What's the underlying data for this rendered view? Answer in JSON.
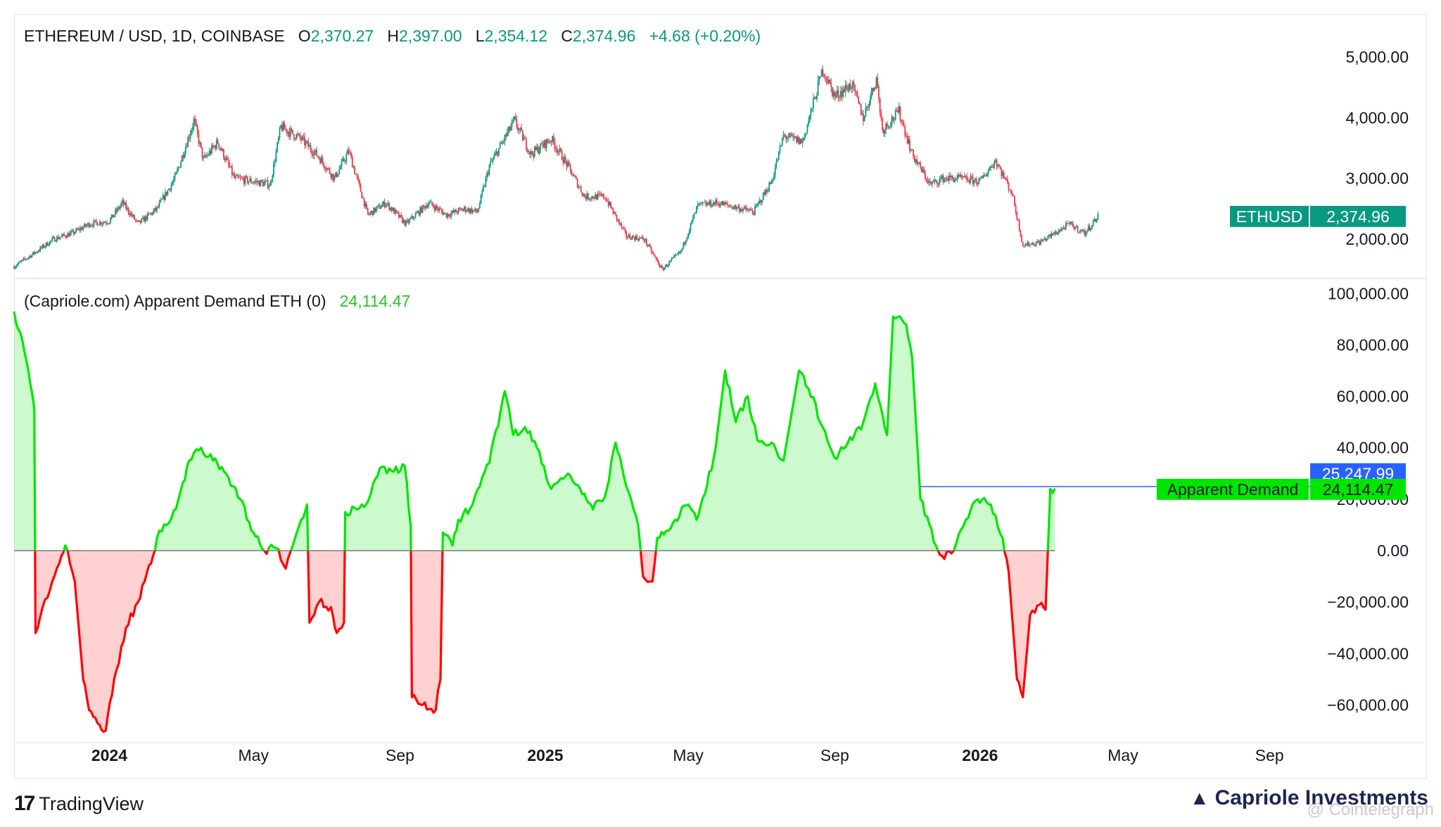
{
  "price_legend": {
    "symbol": "ETHEREUM / USD, 1D, COINBASE",
    "o_label": "O",
    "o_value": "2,370.27",
    "h_label": "H",
    "h_value": "2,397.00",
    "l_label": "L",
    "l_value": "2,354.12",
    "c_label": "C",
    "c_value": "2,374.96",
    "change": "+4.68 (+0.20%)"
  },
  "indicator_legend": {
    "name": "(Capriole.com) Apparent Demand ETH (0)",
    "value": "24,114.47"
  },
  "price_tag": {
    "symbol": "ETHUSD",
    "value": "2,374.96"
  },
  "demand_tags": {
    "upper": "25,247.99",
    "name": "Apparent Demand",
    "value": "24,114.47"
  },
  "branding": {
    "tradingview": "TradingView",
    "capriole": "Capriole Investments",
    "watermark": "@ Cointelegraph"
  },
  "colors": {
    "up": "#089981",
    "down": "#f23645",
    "demand_pos": "#00e600",
    "demand_neg": "#ff0000",
    "blue_tag": "#2962ff"
  },
  "chart_data": [
    {
      "type": "candlestick",
      "title": "ETHEREUM / USD, 1D, COINBASE",
      "ylim": [
        1400,
        5300
      ],
      "yticks": [
        2000,
        3000,
        4000,
        5000
      ],
      "ytick_labels": [
        "2,000.00",
        "3,000.00",
        "4,000.00",
        "5,000.00"
      ],
      "x_start": "2023-10-13",
      "x_end": "2026-04-10",
      "x_axis_end": "2026-10-01",
      "xticks": [
        {
          "date": "2024-01-01",
          "label": "2024",
          "bold": true
        },
        {
          "date": "2024-05-01",
          "label": "May",
          "bold": false
        },
        {
          "date": "2024-09-01",
          "label": "Sep",
          "bold": false
        },
        {
          "date": "2025-01-01",
          "label": "2025",
          "bold": true
        },
        {
          "date": "2025-05-01",
          "label": "May",
          "bold": false
        },
        {
          "date": "2025-09-01",
          "label": "Sep",
          "bold": false
        },
        {
          "date": "2026-01-01",
          "label": "2026",
          "bold": true
        },
        {
          "date": "2026-05-01",
          "label": "May",
          "bold": false
        },
        {
          "date": "2026-09-01",
          "label": "Sep",
          "bold": false
        }
      ],
      "close_path": [
        [
          "2023-10-13",
          1550
        ],
        [
          "2023-11-01",
          1800
        ],
        [
          "2023-11-15",
          2000
        ],
        [
          "2023-12-01",
          2100
        ],
        [
          "2023-12-15",
          2250
        ],
        [
          "2024-01-01",
          2300
        ],
        [
          "2024-01-12",
          2600
        ],
        [
          "2024-01-25",
          2250
        ],
        [
          "2024-02-10",
          2500
        ],
        [
          "2024-02-25",
          3000
        ],
        [
          "2024-03-12",
          3950
        ],
        [
          "2024-03-20",
          3300
        ],
        [
          "2024-04-01",
          3600
        ],
        [
          "2024-04-15",
          3000
        ],
        [
          "2024-05-01",
          2950
        ],
        [
          "2024-05-15",
          2900
        ],
        [
          "2024-05-24",
          3850
        ],
        [
          "2024-06-10",
          3650
        ],
        [
          "2024-06-25",
          3350
        ],
        [
          "2024-07-08",
          3000
        ],
        [
          "2024-07-20",
          3450
        ],
        [
          "2024-08-05",
          2400
        ],
        [
          "2024-08-20",
          2600
        ],
        [
          "2024-09-06",
          2250
        ],
        [
          "2024-09-25",
          2600
        ],
        [
          "2024-10-10",
          2400
        ],
        [
          "2024-10-25",
          2500
        ],
        [
          "2024-11-05",
          2450
        ],
        [
          "2024-11-15",
          3200
        ],
        [
          "2024-12-06",
          3950
        ],
        [
          "2024-12-20",
          3400
        ],
        [
          "2025-01-06",
          3650
        ],
        [
          "2025-01-20",
          3200
        ],
        [
          "2025-02-03",
          2700
        ],
        [
          "2025-02-20",
          2700
        ],
        [
          "2025-03-10",
          2050
        ],
        [
          "2025-03-25",
          2000
        ],
        [
          "2025-04-09",
          1500
        ],
        [
          "2025-04-25",
          1800
        ],
        [
          "2025-05-09",
          2550
        ],
        [
          "2025-05-25",
          2600
        ],
        [
          "2025-06-15",
          2500
        ],
        [
          "2025-06-25",
          2450
        ],
        [
          "2025-07-10",
          2950
        ],
        [
          "2025-07-20",
          3700
        ],
        [
          "2025-08-05",
          3600
        ],
        [
          "2025-08-22",
          4800
        ],
        [
          "2025-09-01",
          4350
        ],
        [
          "2025-09-15",
          4550
        ],
        [
          "2025-09-25",
          4000
        ],
        [
          "2025-10-06",
          4650
        ],
        [
          "2025-10-11",
          3800
        ],
        [
          "2025-10-25",
          4100
        ],
        [
          "2025-11-05",
          3400
        ],
        [
          "2025-11-20",
          2900
        ],
        [
          "2025-12-01",
          3000
        ],
        [
          "2025-12-15",
          3000
        ],
        [
          "2026-01-01",
          2950
        ],
        [
          "2026-01-14",
          3300
        ],
        [
          "2026-01-28",
          2750
        ],
        [
          "2026-02-06",
          1900
        ],
        [
          "2026-02-20",
          1950
        ],
        [
          "2026-03-05",
          2100
        ],
        [
          "2026-03-17",
          2250
        ],
        [
          "2026-03-30",
          2100
        ],
        [
          "2026-04-10",
          2374.96
        ]
      ]
    },
    {
      "type": "area",
      "title": "(Capriole.com) Apparent Demand ETH (0)",
      "ylim": [
        -73000,
        102000
      ],
      "yticks": [
        -60000,
        -40000,
        -20000,
        0,
        20000,
        40000,
        60000,
        80000,
        100000
      ],
      "ytick_labels": [
        "−60,000.00",
        "−40,000.00",
        "−20,000.00",
        "0.00",
        "20,000.00",
        "40,000.00",
        "60,000.00",
        "80,000.00",
        "100,000.00"
      ],
      "baseline": 0,
      "reference_level": 25247.99,
      "series": [
        [
          "2023-10-13",
          93000
        ],
        [
          "2023-10-18",
          85000
        ],
        [
          "2023-10-25",
          70000
        ],
        [
          "2023-10-30",
          55000
        ],
        [
          "2023-10-31",
          -32000
        ],
        [
          "2023-11-06",
          -22000
        ],
        [
          "2023-11-20",
          -5000
        ],
        [
          "2023-11-25",
          2000
        ],
        [
          "2023-12-03",
          -12000
        ],
        [
          "2023-12-10",
          -50000
        ],
        [
          "2023-12-15",
          -62000
        ],
        [
          "2023-12-22",
          -67000
        ],
        [
          "2023-12-29",
          -70000
        ],
        [
          "2024-01-05",
          -50000
        ],
        [
          "2024-01-15",
          -30000
        ],
        [
          "2024-01-25",
          -20000
        ],
        [
          "2024-02-05",
          -5000
        ],
        [
          "2024-02-10",
          5000
        ],
        [
          "2024-02-18",
          10000
        ],
        [
          "2024-02-28",
          20000
        ],
        [
          "2024-03-08",
          35000
        ],
        [
          "2024-03-18",
          40000
        ],
        [
          "2024-03-28",
          35000
        ],
        [
          "2024-04-08",
          30000
        ],
        [
          "2024-04-20",
          20000
        ],
        [
          "2024-05-01",
          7000
        ],
        [
          "2024-05-10",
          0
        ],
        [
          "2024-05-20",
          1000
        ],
        [
          "2024-05-28",
          -7000
        ],
        [
          "2024-06-03",
          2000
        ],
        [
          "2024-06-10",
          12000
        ],
        [
          "2024-06-15",
          18000
        ],
        [
          "2024-06-17",
          -28000
        ],
        [
          "2024-06-25",
          -20000
        ],
        [
          "2024-07-05",
          -22000
        ],
        [
          "2024-07-10",
          -32000
        ],
        [
          "2024-07-16",
          -28000
        ],
        [
          "2024-07-17",
          15000
        ],
        [
          "2024-08-02",
          17000
        ],
        [
          "2024-08-15",
          32000
        ],
        [
          "2024-08-25",
          31000
        ],
        [
          "2024-09-05",
          33000
        ],
        [
          "2024-09-10",
          10000
        ],
        [
          "2024-09-11",
          -57000
        ],
        [
          "2024-09-20",
          -60000
        ],
        [
          "2024-10-01",
          -62000
        ],
        [
          "2024-10-05",
          -50000
        ],
        [
          "2024-10-07",
          7000
        ],
        [
          "2024-10-15",
          2000
        ],
        [
          "2024-10-20",
          12000
        ],
        [
          "2024-11-01",
          18000
        ],
        [
          "2024-11-15",
          34000
        ],
        [
          "2024-11-28",
          62000
        ],
        [
          "2024-12-05",
          45000
        ],
        [
          "2024-12-15",
          48000
        ],
        [
          "2024-12-25",
          40000
        ],
        [
          "2025-01-06",
          24000
        ],
        [
          "2025-01-20",
          30000
        ],
        [
          "2025-02-01",
          22000
        ],
        [
          "2025-02-10",
          16000
        ],
        [
          "2025-02-20",
          21000
        ],
        [
          "2025-03-01",
          42000
        ],
        [
          "2025-03-10",
          25000
        ],
        [
          "2025-03-20",
          10000
        ],
        [
          "2025-03-24",
          -10000
        ],
        [
          "2025-04-01",
          -12000
        ],
        [
          "2025-04-05",
          5000
        ],
        [
          "2025-04-20",
          12000
        ],
        [
          "2025-05-01",
          18000
        ],
        [
          "2025-05-08",
          12000
        ],
        [
          "2025-05-15",
          22000
        ],
        [
          "2025-05-24",
          40000
        ],
        [
          "2025-06-01",
          70000
        ],
        [
          "2025-06-10",
          50000
        ],
        [
          "2025-06-20",
          60000
        ],
        [
          "2025-06-28",
          43000
        ],
        [
          "2025-07-10",
          42000
        ],
        [
          "2025-07-20",
          35000
        ],
        [
          "2025-08-02",
          70000
        ],
        [
          "2025-08-10",
          63000
        ],
        [
          "2025-08-22",
          48000
        ],
        [
          "2025-09-01",
          36000
        ],
        [
          "2025-09-12",
          42000
        ],
        [
          "2025-09-25",
          50000
        ],
        [
          "2025-10-05",
          65000
        ],
        [
          "2025-10-15",
          45000
        ],
        [
          "2025-10-20",
          91000
        ],
        [
          "2025-10-31",
          88000
        ],
        [
          "2025-11-05",
          75000
        ],
        [
          "2025-11-12",
          20000
        ],
        [
          "2025-11-25",
          2000
        ],
        [
          "2025-11-30",
          -2000
        ],
        [
          "2025-12-10",
          0
        ],
        [
          "2025-12-20",
          12000
        ],
        [
          "2025-12-30",
          20000
        ],
        [
          "2026-01-10",
          18000
        ],
        [
          "2026-01-20",
          5000
        ],
        [
          "2026-01-25",
          -8000
        ],
        [
          "2026-02-01",
          -50000
        ],
        [
          "2026-02-06",
          -57000
        ],
        [
          "2026-02-12",
          -25000
        ],
        [
          "2026-02-20",
          -21000
        ],
        [
          "2026-02-25",
          -23000
        ],
        [
          "2026-03-01",
          24000
        ],
        [
          "2026-03-05",
          24114.47
        ]
      ]
    }
  ]
}
